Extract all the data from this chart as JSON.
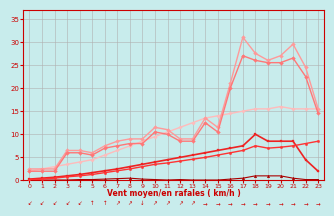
{
  "background_color": "#c8ecec",
  "grid_color": "#b0b0b0",
  "xlabel": "Vent moyen/en rafales ( km/h )",
  "x": [
    0,
    1,
    2,
    3,
    4,
    5,
    6,
    7,
    8,
    9,
    10,
    11,
    12,
    13,
    14,
    15,
    16,
    17,
    18,
    19,
    20,
    21,
    22,
    23
  ],
  "lines": [
    {
      "comment": "lightest pink - nearly straight rising line, thin, no markers visible",
      "y": [
        2.0,
        2.5,
        3.0,
        3.5,
        4.0,
        4.5,
        5.5,
        6.5,
        7.5,
        8.5,
        9.5,
        10.5,
        11.5,
        12.5,
        13.5,
        14.0,
        14.5,
        15.0,
        15.5,
        15.5,
        16.0,
        15.5,
        15.5,
        15.5
      ],
      "color": "#ffbbbb",
      "lw": 1.0,
      "marker": "D",
      "ms": 1.8,
      "zorder": 2
    },
    {
      "comment": "medium pink with diamond markers - jagged, peaks at x=17 ~31, x=21 ~29",
      "y": [
        2.5,
        2.5,
        2.5,
        6.5,
        6.5,
        6.0,
        7.5,
        8.5,
        9.0,
        9.0,
        11.5,
        11.0,
        9.0,
        9.0,
        13.5,
        11.5,
        21.0,
        31.0,
        27.5,
        26.0,
        27.0,
        29.5,
        24.5,
        15.5
      ],
      "color": "#ff9999",
      "lw": 1.0,
      "marker": "D",
      "ms": 2.0,
      "zorder": 3
    },
    {
      "comment": "slightly darker pink - similar jagged shape but slightly lower, peaks ~27 at x=18",
      "y": [
        2.0,
        2.0,
        2.0,
        6.0,
        6.0,
        5.5,
        7.0,
        7.5,
        8.0,
        8.0,
        10.5,
        10.0,
        8.5,
        8.5,
        12.5,
        10.5,
        20.0,
        27.0,
        26.0,
        25.5,
        25.5,
        26.5,
        22.5,
        14.5
      ],
      "color": "#ff7777",
      "lw": 1.0,
      "marker": "D",
      "ms": 2.0,
      "zorder": 3
    },
    {
      "comment": "medium red - rises steadily, peaks around x=18-19 ~8-9",
      "y": [
        0.3,
        0.5,
        0.7,
        1.0,
        1.3,
        1.7,
        2.1,
        2.5,
        3.0,
        3.5,
        4.0,
        4.5,
        5.0,
        5.5,
        6.0,
        6.5,
        7.0,
        7.5,
        10.0,
        8.5,
        8.5,
        8.5,
        4.5,
        2.0
      ],
      "color": "#ee2222",
      "lw": 1.2,
      "marker": "s",
      "ms": 2.0,
      "zorder": 4
    },
    {
      "comment": "darkest red - nearly flat, small bump at ~18",
      "y": [
        0.1,
        0.1,
        0.1,
        0.1,
        0.2,
        0.2,
        0.3,
        0.4,
        0.5,
        0.3,
        0.2,
        0.1,
        0.2,
        0.1,
        0.1,
        0.1,
        0.3,
        0.5,
        1.0,
        1.0,
        1.0,
        0.5,
        0.2,
        0.2
      ],
      "color": "#aa0000",
      "lw": 0.8,
      "marker": "^",
      "ms": 2.0,
      "zorder": 4
    },
    {
      "comment": "bright red medium line - rises steadily to ~10 at end, with small peak ~18",
      "y": [
        0.2,
        0.3,
        0.5,
        0.8,
        1.0,
        1.3,
        1.7,
        2.1,
        2.5,
        3.0,
        3.5,
        3.8,
        4.2,
        4.6,
        5.0,
        5.5,
        6.0,
        6.5,
        7.5,
        7.0,
        7.2,
        7.5,
        8.0,
        8.5
      ],
      "color": "#ff3333",
      "lw": 1.0,
      "marker": "o",
      "ms": 1.8,
      "zorder": 4
    }
  ],
  "xlim": [
    -0.5,
    23.5
  ],
  "ylim": [
    0,
    37
  ],
  "yticks": [
    0,
    5,
    10,
    15,
    20,
    25,
    30,
    35
  ],
  "xticks": [
    0,
    1,
    2,
    3,
    4,
    5,
    6,
    7,
    8,
    9,
    10,
    11,
    12,
    13,
    14,
    15,
    16,
    17,
    18,
    19,
    20,
    21,
    22,
    23
  ],
  "arrow_chars": [
    "↙",
    "↙",
    "↙",
    "↙",
    "↙",
    "↑",
    "↑",
    "↗",
    "↗",
    "↓",
    "↗",
    "↗",
    "↗",
    "↗",
    "→",
    "→",
    "→",
    "→",
    "→",
    "→",
    "→",
    "→",
    "→",
    "→"
  ]
}
